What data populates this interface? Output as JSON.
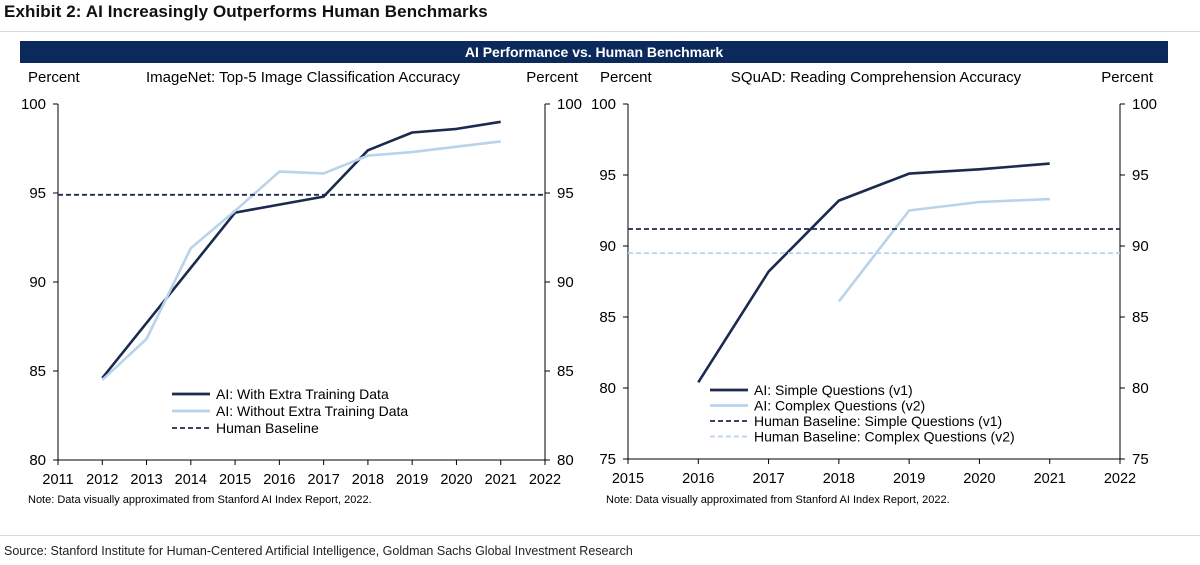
{
  "exhibit_title": "Exhibit 2: AI Increasingly Outperforms Human Benchmarks",
  "banner_title": "AI Performance vs. Human Benchmark",
  "source": "Source: Stanford Institute for Human-Centered Artificial Intelligence, Goldman Sachs Global Investment Research",
  "colors": {
    "dark_navy": "#1b2a4e",
    "light_blue": "#b9d3ea",
    "banner": "#0b2a5b"
  },
  "chart_data": [
    {
      "type": "line",
      "title": "ImageNet: Top-5 Image Classification Accuracy",
      "ylabel_left": "Percent",
      "ylabel_right": "Percent",
      "note": "Note: Data visually approximated from Stanford AI Index Report, 2022.",
      "xlim": [
        2011,
        2022
      ],
      "ylim": [
        80,
        100
      ],
      "xticks": [
        2011,
        2012,
        2013,
        2014,
        2015,
        2016,
        2017,
        2018,
        2019,
        2020,
        2021,
        2022
      ],
      "yticks": [
        80,
        85,
        90,
        95,
        100
      ],
      "legend_position": "bottom-center",
      "series": [
        {
          "name": "AI: With Extra Training Data",
          "color": "#1b2a4e",
          "style": "solid",
          "x": [
            2012,
            2015,
            2017,
            2018,
            2019,
            2020,
            2021
          ],
          "y": [
            84.6,
            93.9,
            94.8,
            97.4,
            98.4,
            98.6,
            99.0
          ]
        },
        {
          "name": "AI: Without Extra Training Data",
          "color": "#b9d3ea",
          "style": "solid",
          "x": [
            2012,
            2013,
            2014,
            2015,
            2016,
            2017,
            2018,
            2019,
            2020,
            2021
          ],
          "y": [
            84.5,
            86.8,
            91.9,
            94.0,
            96.2,
            96.1,
            97.1,
            97.3,
            97.6,
            97.9
          ]
        },
        {
          "name": "Human Baseline",
          "color": "#1b2a4e",
          "style": "dashed",
          "x": [
            2011,
            2022
          ],
          "y": [
            94.9,
            94.9
          ]
        }
      ]
    },
    {
      "type": "line",
      "title": "SQuAD: Reading Comprehension Accuracy",
      "ylabel_left": "Percent",
      "ylabel_right": "Percent",
      "note": "Note: Data visually approximated from Stanford AI Index Report, 2022.",
      "xlim": [
        2015,
        2022
      ],
      "ylim": [
        75,
        100
      ],
      "xticks": [
        2015,
        2016,
        2017,
        2018,
        2019,
        2020,
        2021,
        2022
      ],
      "yticks": [
        75,
        80,
        85,
        90,
        95,
        100
      ],
      "legend_position": "bottom-center",
      "series": [
        {
          "name": "AI: Simple Questions (v1)",
          "color": "#1b2a4e",
          "style": "solid",
          "x": [
            2016,
            2017,
            2018,
            2019,
            2020,
            2021
          ],
          "y": [
            80.4,
            88.2,
            93.2,
            95.1,
            95.4,
            95.8
          ]
        },
        {
          "name": "AI: Complex Questions (v2)",
          "color": "#b9d3ea",
          "style": "solid",
          "x": [
            2018,
            2019,
            2020,
            2021
          ],
          "y": [
            86.1,
            92.5,
            93.1,
            93.3
          ]
        },
        {
          "name": "Human Baseline: Simple Questions (v1)",
          "color": "#1b2a4e",
          "style": "dashed",
          "x": [
            2015,
            2022
          ],
          "y": [
            91.2,
            91.2
          ]
        },
        {
          "name": "Human Baseline: Complex Questions (v2)",
          "color": "#b9d3ea",
          "style": "dashed",
          "x": [
            2015,
            2022
          ],
          "y": [
            89.5,
            89.5
          ]
        }
      ]
    }
  ]
}
